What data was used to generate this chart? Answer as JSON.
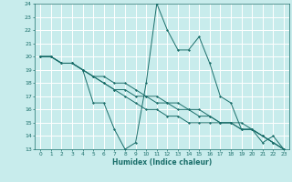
{
  "xlabel": "Humidex (Indice chaleur)",
  "xlim": [
    -0.5,
    23.5
  ],
  "ylim": [
    13,
    24
  ],
  "xticks": [
    0,
    1,
    2,
    3,
    4,
    5,
    6,
    7,
    8,
    9,
    10,
    11,
    12,
    13,
    14,
    15,
    16,
    17,
    18,
    19,
    20,
    21,
    22,
    23
  ],
  "yticks": [
    13,
    14,
    15,
    16,
    17,
    18,
    19,
    20,
    21,
    22,
    23,
    24
  ],
  "bg_color": "#c8ecec",
  "grid_color": "#ffffff",
  "line_color": "#1a6e6a",
  "series": [
    [
      20,
      20,
      19.5,
      19.5,
      19,
      16.5,
      16.5,
      14.5,
      13,
      13.5,
      18,
      24,
      22,
      20.5,
      20.5,
      21.5,
      19.5,
      17,
      16.5,
      14.5,
      14.5,
      13.5,
      14,
      13
    ],
    [
      20,
      20,
      19.5,
      19.5,
      19,
      18.5,
      18,
      17.5,
      17,
      16.5,
      16,
      16,
      15.5,
      15.5,
      15,
      15,
      15,
      15,
      15,
      15,
      14.5,
      14,
      13.5,
      13
    ],
    [
      20,
      20,
      19.5,
      19.5,
      19,
      18.5,
      18,
      17.5,
      17.5,
      17,
      17,
      16.5,
      16.5,
      16,
      16,
      15.5,
      15.5,
      15,
      15,
      14.5,
      14.5,
      14,
      13.5,
      13
    ],
    [
      20,
      20,
      19.5,
      19.5,
      19,
      18.5,
      18.5,
      18,
      18,
      17.5,
      17,
      17,
      16.5,
      16.5,
      16,
      16,
      15.5,
      15,
      15,
      14.5,
      14.5,
      14,
      13.5,
      13
    ]
  ]
}
